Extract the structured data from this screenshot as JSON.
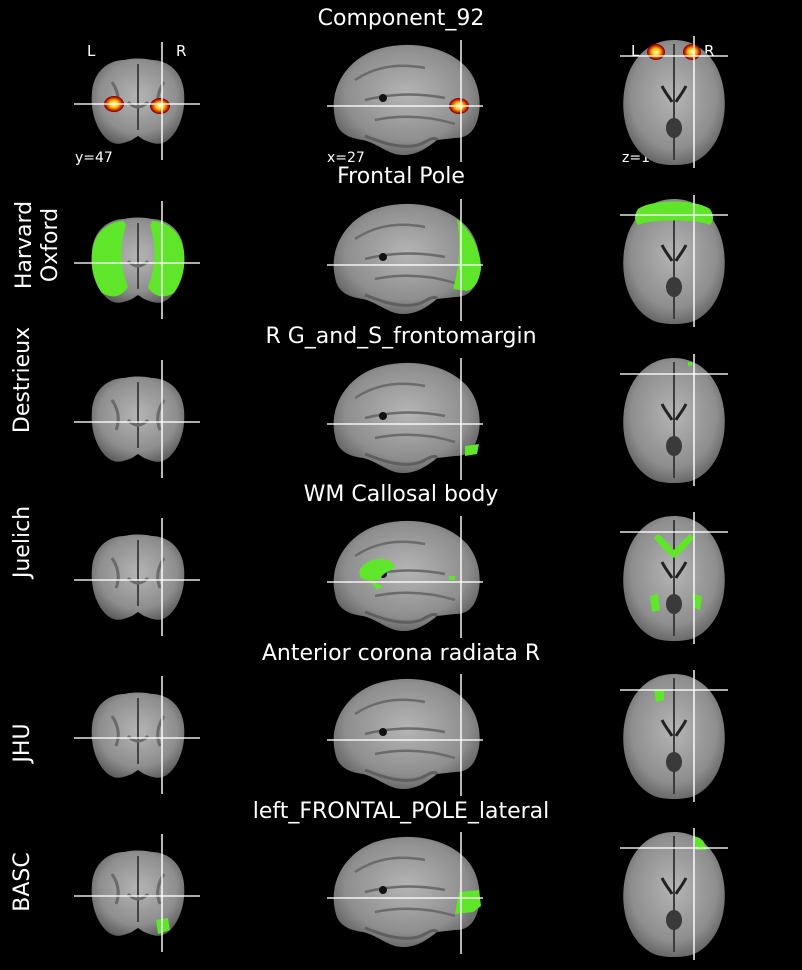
{
  "figure_title": "Component_92",
  "coords": {
    "y": "y=47",
    "x": "x=27",
    "z": "z=1"
  },
  "orientation": {
    "left": "L",
    "right": "R"
  },
  "rows": [
    {
      "atlas": "",
      "region": ""
    },
    {
      "atlas": "Harvard Oxford",
      "atlas_line1": "Harvard",
      "atlas_line2": "Oxford",
      "region": "Frontal Pole"
    },
    {
      "atlas": "Destrieux",
      "region": "R G_and_S_frontomargin"
    },
    {
      "atlas": "Juelich",
      "region": "WM Callosal body"
    },
    {
      "atlas": "JHU",
      "region": "Anterior corona radiata R"
    },
    {
      "atlas": "BASC",
      "region": "left_FRONTAL_POLE_lateral"
    }
  ],
  "colors": {
    "background": "#000000",
    "overlay_component": "#ffd000",
    "overlay_atlas": "#5fe52a",
    "crosshair": "#ffffff",
    "brain_gray": "#8a8a8a"
  }
}
